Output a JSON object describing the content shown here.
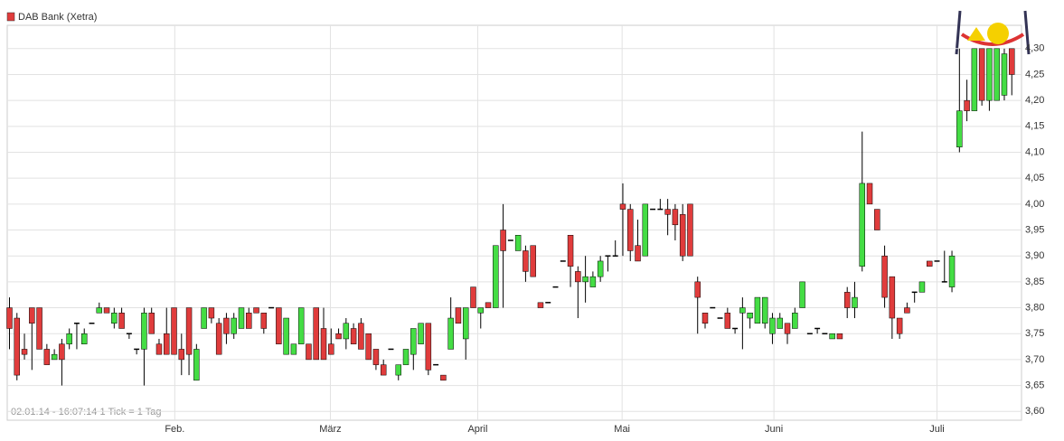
{
  "chart_data": {
    "type": "candlestick",
    "legend": "DAB Bank (Xetra)",
    "footer": "02.01.14 - 16:07:14   1 Tick = 1 Tag",
    "colors": {
      "up": "#44dd44",
      "down": "#e03c3c",
      "doji": "#000000",
      "legend": "#e03c3c"
    },
    "grid": true,
    "xlim": [
      -0.3,
      135.3
    ],
    "xticks": [
      {
        "value": 22.1,
        "label": "Feb."
      },
      {
        "value": 42.9,
        "label": "März"
      },
      {
        "value": 62.6,
        "label": "April"
      },
      {
        "value": 81.9,
        "label": "Mai"
      },
      {
        "value": 102.2,
        "label": "Juni"
      },
      {
        "value": 124.0,
        "label": "Juli"
      }
    ],
    "ylim": [
      3.583,
      4.345
    ],
    "yticks": [
      {
        "value": 3.6,
        "label": "3,60"
      },
      {
        "value": 3.65,
        "label": "3,65"
      },
      {
        "value": 3.7,
        "label": "3,70"
      },
      {
        "value": 3.75,
        "label": "3,75"
      },
      {
        "value": 3.8,
        "label": "3,80"
      },
      {
        "value": 3.85,
        "label": "3,85"
      },
      {
        "value": 3.9,
        "label": "3,90"
      },
      {
        "value": 3.95,
        "label": "3,95"
      },
      {
        "value": 4.0,
        "label": "4,00"
      },
      {
        "value": 4.05,
        "label": "4,05"
      },
      {
        "value": 4.1,
        "label": "4,10"
      },
      {
        "value": 4.15,
        "label": "4,15"
      },
      {
        "value": 4.2,
        "label": "4,20"
      },
      {
        "value": 4.25,
        "label": "4,25"
      },
      {
        "value": 4.3,
        "label": "4,30"
      }
    ],
    "open": [
      3.8,
      3.78,
      3.72,
      3.8,
      3.8,
      3.72,
      3.7,
      3.73,
      3.73,
      3.77,
      3.73,
      3.77,
      3.79,
      3.8,
      3.77,
      3.79,
      3.75,
      3.72,
      3.72,
      3.79,
      3.73,
      3.75,
      3.8,
      3.72,
      3.8,
      3.66,
      3.76,
      3.8,
      3.77,
      3.78,
      3.75,
      3.76,
      3.79,
      3.8,
      3.79,
      3.8,
      3.8,
      3.71,
      3.71,
      3.73,
      3.73,
      3.8,
      3.76,
      3.73,
      3.75,
      3.74,
      3.76,
      3.77,
      3.75,
      3.72,
      3.69,
      3.72,
      3.67,
      3.69,
      3.71,
      3.73,
      3.77,
      3.69,
      3.67,
      3.72,
      3.8,
      3.74,
      3.84,
      3.79,
      3.81,
      3.8,
      3.95,
      3.93,
      3.91,
      3.91,
      3.92,
      3.81,
      3.81,
      3.84,
      3.89,
      3.94,
      3.87,
      3.85,
      3.84,
      3.86,
      3.9,
      3.9,
      4.0,
      3.99,
      3.92,
      3.9,
      3.99,
      3.99,
      3.99,
      3.99,
      3.98,
      4.0,
      3.85,
      3.79,
      3.8,
      3.78,
      3.79,
      3.76,
      3.79,
      3.78,
      3.77,
      3.77,
      3.75,
      3.76,
      3.77,
      3.76,
      3.8,
      3.75,
      3.76,
      3.75,
      3.74,
      3.75,
      3.83,
      3.8,
      3.88,
      4.04,
      3.99,
      3.9,
      3.86,
      3.78,
      3.8,
      3.83,
      3.83,
      3.89,
      3.89,
      3.85,
      3.84,
      4.11,
      4.2,
      4.18,
      4.3,
      4.2,
      4.2,
      4.21,
      4.3
    ],
    "high": [
      3.82,
      3.79,
      3.75,
      3.8,
      3.8,
      3.73,
      3.72,
      3.74,
      3.76,
      3.77,
      3.76,
      3.77,
      3.81,
      3.8,
      3.8,
      3.8,
      3.75,
      3.72,
      3.8,
      3.8,
      3.74,
      3.8,
      3.8,
      3.75,
      3.8,
      3.73,
      3.8,
      3.8,
      3.78,
      3.79,
      3.79,
      3.8,
      3.8,
      3.8,
      3.79,
      3.8,
      3.8,
      3.78,
      3.73,
      3.8,
      3.73,
      3.8,
      3.8,
      3.76,
      3.76,
      3.78,
      3.77,
      3.78,
      3.75,
      3.72,
      3.7,
      3.72,
      3.69,
      3.72,
      3.76,
      3.77,
      3.77,
      3.69,
      3.67,
      3.82,
      3.8,
      3.8,
      3.84,
      3.8,
      3.81,
      3.92,
      4.0,
      3.93,
      3.94,
      3.92,
      3.92,
      3.81,
      3.81,
      3.84,
      3.89,
      3.94,
      3.88,
      3.9,
      3.87,
      3.9,
      3.9,
      3.93,
      4.04,
      4.0,
      3.97,
      4.0,
      3.99,
      4.01,
      4.01,
      4.0,
      4.0,
      4.0,
      3.86,
      3.79,
      3.8,
      3.78,
      3.8,
      3.76,
      3.82,
      3.79,
      3.82,
      3.82,
      3.79,
      3.79,
      3.77,
      3.8,
      3.85,
      3.75,
      3.76,
      3.75,
      3.75,
      3.75,
      3.84,
      3.85,
      4.14,
      4.04,
      3.99,
      3.92,
      3.86,
      3.78,
      3.81,
      3.83,
      3.85,
      3.89,
      3.89,
      3.91,
      3.91,
      4.3,
      4.24,
      4.3,
      4.3,
      4.3,
      4.3,
      4.3,
      4.3
    ],
    "low": [
      3.72,
      3.66,
      3.7,
      3.68,
      3.72,
      3.69,
      3.7,
      3.65,
      3.72,
      3.72,
      3.73,
      3.77,
      3.79,
      3.79,
      3.76,
      3.76,
      3.74,
      3.71,
      3.65,
      3.75,
      3.71,
      3.71,
      3.71,
      3.67,
      3.67,
      3.66,
      3.76,
      3.77,
      3.71,
      3.73,
      3.74,
      3.76,
      3.76,
      3.79,
      3.75,
      3.8,
      3.73,
      3.71,
      3.71,
      3.73,
      3.7,
      3.7,
      3.7,
      3.71,
      3.74,
      3.72,
      3.73,
      3.72,
      3.7,
      3.68,
      3.67,
      3.72,
      3.66,
      3.69,
      3.68,
      3.73,
      3.67,
      3.69,
      3.66,
      3.72,
      3.77,
      3.7,
      3.8,
      3.76,
      3.8,
      3.8,
      3.8,
      3.93,
      3.91,
      3.85,
      3.86,
      3.8,
      3.81,
      3.84,
      3.89,
      3.84,
      3.78,
      3.81,
      3.84,
      3.85,
      3.87,
      3.9,
      3.9,
      3.89,
      3.89,
      3.9,
      3.99,
      3.99,
      3.94,
      3.93,
      3.89,
      3.9,
      3.75,
      3.76,
      3.8,
      3.78,
      3.76,
      3.75,
      3.72,
      3.76,
      3.77,
      3.76,
      3.73,
      3.76,
      3.73,
      3.76,
      3.8,
      3.75,
      3.75,
      3.75,
      3.74,
      3.74,
      3.78,
      3.78,
      3.87,
      4.0,
      3.95,
      3.8,
      3.74,
      3.74,
      3.79,
      3.81,
      3.83,
      3.88,
      3.89,
      3.85,
      3.83,
      4.1,
      4.16,
      4.18,
      4.19,
      4.18,
      4.2,
      4.2,
      4.21
    ],
    "close": [
      3.76,
      3.67,
      3.71,
      3.77,
      3.72,
      3.69,
      3.71,
      3.7,
      3.75,
      3.77,
      3.75,
      3.77,
      3.8,
      3.79,
      3.79,
      3.76,
      3.75,
      3.72,
      3.79,
      3.75,
      3.71,
      3.71,
      3.71,
      3.7,
      3.71,
      3.72,
      3.8,
      3.78,
      3.71,
      3.75,
      3.78,
      3.8,
      3.76,
      3.79,
      3.76,
      3.8,
      3.73,
      3.78,
      3.73,
      3.8,
      3.7,
      3.7,
      3.7,
      3.71,
      3.74,
      3.77,
      3.73,
      3.72,
      3.7,
      3.69,
      3.67,
      3.72,
      3.69,
      3.72,
      3.76,
      3.77,
      3.68,
      3.69,
      3.66,
      3.78,
      3.77,
      3.8,
      3.8,
      3.8,
      3.8,
      3.92,
      3.91,
      3.93,
      3.94,
      3.87,
      3.86,
      3.8,
      3.81,
      3.84,
      3.89,
      3.88,
      3.85,
      3.86,
      3.86,
      3.89,
      3.9,
      3.9,
      3.99,
      3.91,
      3.89,
      4.0,
      3.99,
      3.99,
      3.98,
      3.96,
      3.9,
      3.9,
      3.82,
      3.77,
      3.8,
      3.78,
      3.76,
      3.76,
      3.8,
      3.79,
      3.82,
      3.82,
      3.78,
      3.78,
      3.75,
      3.79,
      3.85,
      3.75,
      3.76,
      3.75,
      3.75,
      3.74,
      3.8,
      3.82,
      4.04,
      4.0,
      3.95,
      3.82,
      3.78,
      3.75,
      3.79,
      3.83,
      3.85,
      3.88,
      3.89,
      3.85,
      3.9,
      4.18,
      4.18,
      4.3,
      4.2,
      4.3,
      4.3,
      4.29,
      4.25
    ]
  }
}
